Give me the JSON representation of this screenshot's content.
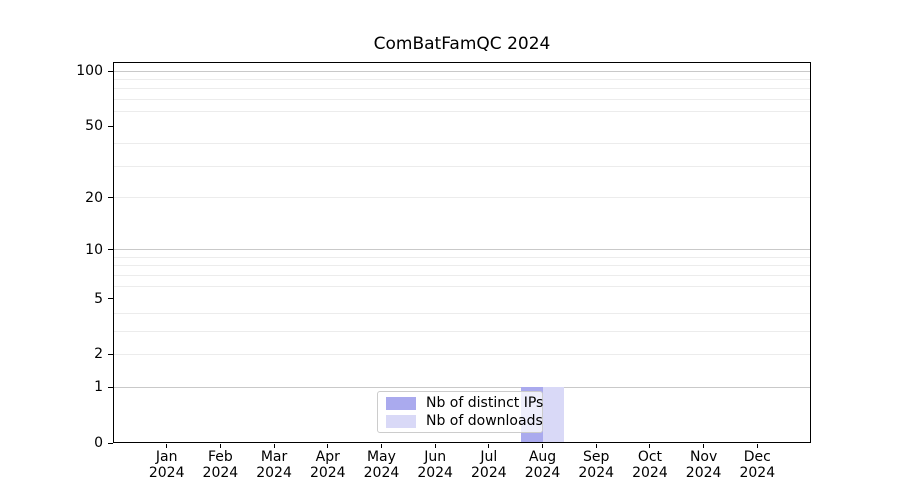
{
  "chart_data": {
    "type": "bar",
    "title": "ComBatFamQC 2024",
    "categories": [
      "Jan",
      "Feb",
      "Mar",
      "Apr",
      "May",
      "Jun",
      "Jul",
      "Aug",
      "Sep",
      "Oct",
      "Nov",
      "Dec"
    ],
    "category_year": "2024",
    "series": [
      {
        "name": "Nb of distinct IPs",
        "color": "#aaaaee",
        "values": [
          0,
          0,
          0,
          0,
          0,
          0,
          0,
          1,
          0,
          0,
          0,
          0
        ]
      },
      {
        "name": "Nb of downloads",
        "color": "#d9d9f7",
        "values": [
          0,
          0,
          0,
          0,
          0,
          0,
          0,
          1,
          0,
          0,
          0,
          0
        ]
      }
    ],
    "y_scale": "log1p",
    "y_ticks": [
      0,
      1,
      2,
      5,
      10,
      20,
      50,
      100
    ],
    "major_grid_values": [
      1,
      10,
      100
    ],
    "minor_grid_values": [
      2,
      3,
      4,
      6,
      7,
      8,
      9,
      20,
      30,
      40,
      60,
      70,
      80,
      90
    ],
    "ylim": [
      0,
      112
    ],
    "grid": true,
    "legend_position": "lower center",
    "colors": {
      "major_grid": "#c9c9c9",
      "minor_grid": "#ececec",
      "spine": "#000000",
      "background": "#ffffff"
    }
  }
}
